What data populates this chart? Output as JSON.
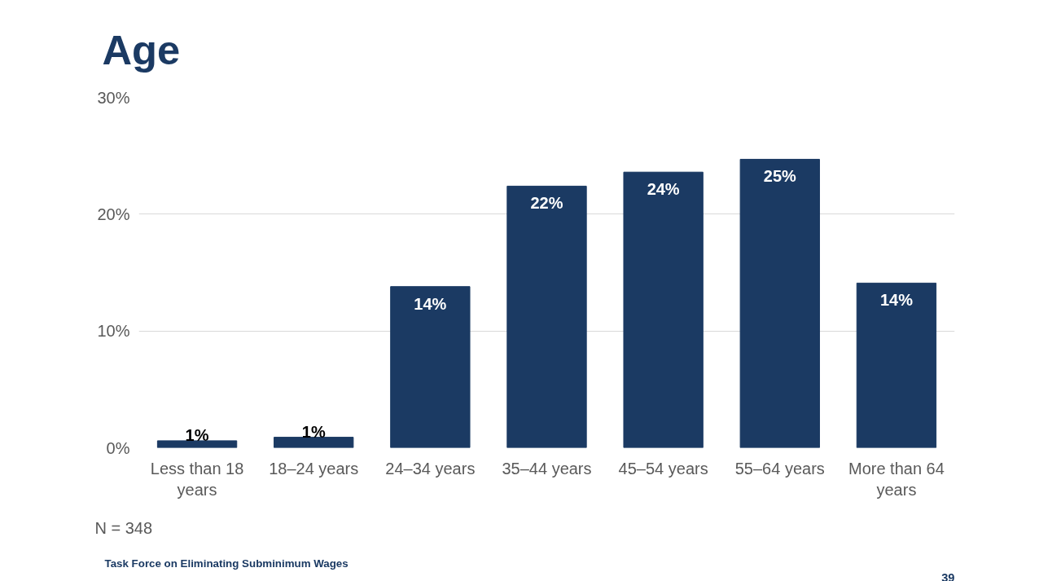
{
  "chart_data": {
    "type": "bar",
    "title": "Age",
    "categories": [
      "Less than 18 years",
      "18–24 years",
      "24–34 years",
      "35–44 years",
      "45–54 years",
      "55–64 years",
      "More than 64 years"
    ],
    "values": [
      0.6,
      0.9,
      13.8,
      22.4,
      23.6,
      24.7,
      14.1
    ],
    "value_labels": [
      "1%",
      "1%",
      "14%",
      "22%",
      "24%",
      "25%",
      "14%"
    ],
    "color": "#1b3a63",
    "ylim": [
      0,
      30
    ],
    "yticks": [
      {
        "value": 0,
        "label": "0%"
      },
      {
        "value": 10,
        "label": "10%"
      },
      {
        "value": 20,
        "label": "20%"
      },
      {
        "value": 30,
        "label": "30%"
      }
    ],
    "grid": "y",
    "annotations": [
      "N = 348",
      "Task Force on Eliminating Subminimum Wages",
      "39"
    ]
  }
}
